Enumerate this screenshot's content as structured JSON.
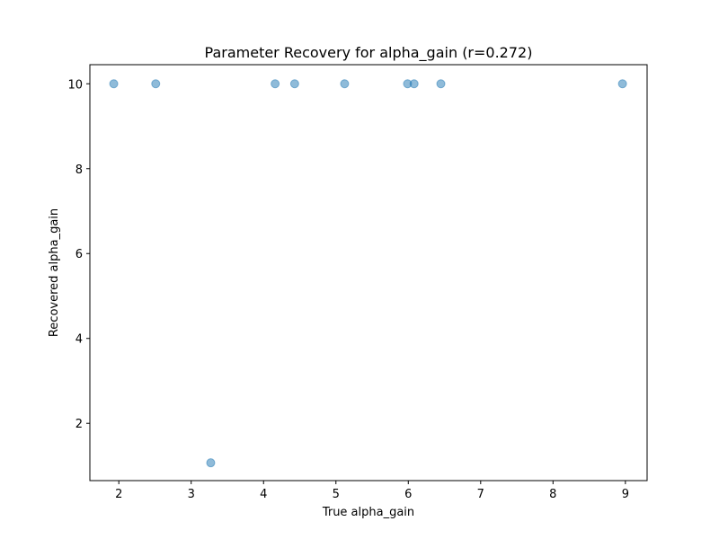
{
  "chart_data": {
    "type": "scatter",
    "title": "Parameter Recovery for alpha_gain (r=0.272)",
    "xlabel": "True alpha_gain",
    "ylabel": "Recovered alpha_gain",
    "xlim": [
      1.6,
      9.3
    ],
    "ylim": [
      0.65,
      10.45
    ],
    "xticks": [
      2,
      3,
      4,
      5,
      6,
      7,
      8,
      9
    ],
    "yticks": [
      2,
      4,
      6,
      8,
      10
    ],
    "grid": false,
    "point_color": "#1f77b4",
    "point_opacity": 0.5,
    "points": [
      {
        "x": 1.93,
        "y": 10.0
      },
      {
        "x": 2.51,
        "y": 10.0
      },
      {
        "x": 3.27,
        "y": 1.07
      },
      {
        "x": 4.16,
        "y": 10.0
      },
      {
        "x": 4.43,
        "y": 10.0
      },
      {
        "x": 5.12,
        "y": 10.0
      },
      {
        "x": 5.99,
        "y": 10.0
      },
      {
        "x": 6.08,
        "y": 10.0
      },
      {
        "x": 6.45,
        "y": 10.0
      },
      {
        "x": 8.96,
        "y": 10.0
      }
    ]
  }
}
